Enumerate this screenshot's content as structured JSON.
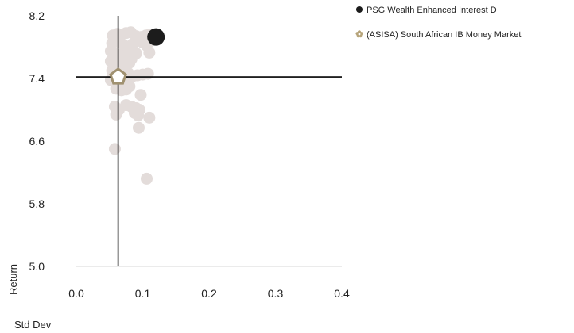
{
  "chart_data": {
    "type": "scatter",
    "xlabel": "Std Dev",
    "ylabel": "Return",
    "xlim": [
      0,
      0.4
    ],
    "ylim": [
      5.0,
      8.2
    ],
    "xticks": [
      "0.0",
      "0.1",
      "0.2",
      "0.3",
      "0.4"
    ],
    "yticks": [
      "5.0",
      "5.8",
      "6.6",
      "7.4",
      "8.2"
    ],
    "grid": false,
    "legend_position": "top-right",
    "reference_lines": {
      "x": 0.063,
      "y": 7.42
    },
    "series": [
      {
        "name": "PSG Wealth Enhanced Interest D",
        "marker": "circle",
        "color": "#1c1c1c",
        "points": [
          {
            "x": 0.12,
            "y": 7.93
          }
        ]
      },
      {
        "name": "(ASISA) South African IB Money Market",
        "marker": "pentagon",
        "color": "#a09170",
        "points": [
          {
            "x": 0.063,
            "y": 7.42
          }
        ]
      },
      {
        "name": "",
        "marker": "circle",
        "color": "#e3dcda",
        "points": [
          {
            "x": 0.055,
            "y": 7.95
          },
          {
            "x": 0.062,
            "y": 7.97
          },
          {
            "x": 0.068,
            "y": 7.96
          },
          {
            "x": 0.075,
            "y": 7.98
          },
          {
            "x": 0.082,
            "y": 7.99
          },
          {
            "x": 0.09,
            "y": 7.94
          },
          {
            "x": 0.098,
            "y": 7.93
          },
          {
            "x": 0.105,
            "y": 7.95
          },
          {
            "x": 0.11,
            "y": 7.96
          },
          {
            "x": 0.054,
            "y": 7.85
          },
          {
            "x": 0.06,
            "y": 7.88
          },
          {
            "x": 0.066,
            "y": 7.86
          },
          {
            "x": 0.072,
            "y": 7.82
          },
          {
            "x": 0.078,
            "y": 7.8
          },
          {
            "x": 0.085,
            "y": 7.84
          },
          {
            "x": 0.1,
            "y": 7.86
          },
          {
            "x": 0.106,
            "y": 7.82
          },
          {
            "x": 0.11,
            "y": 7.73
          },
          {
            "x": 0.052,
            "y": 7.75
          },
          {
            "x": 0.058,
            "y": 7.72
          },
          {
            "x": 0.064,
            "y": 7.7
          },
          {
            "x": 0.07,
            "y": 7.68
          },
          {
            "x": 0.077,
            "y": 7.7
          },
          {
            "x": 0.083,
            "y": 7.65
          },
          {
            "x": 0.09,
            "y": 7.72
          },
          {
            "x": 0.052,
            "y": 7.62
          },
          {
            "x": 0.058,
            "y": 7.6
          },
          {
            "x": 0.066,
            "y": 7.58
          },
          {
            "x": 0.073,
            "y": 7.55
          },
          {
            "x": 0.08,
            "y": 7.6
          },
          {
            "x": 0.054,
            "y": 7.5
          },
          {
            "x": 0.06,
            "y": 7.48
          },
          {
            "x": 0.07,
            "y": 7.45
          },
          {
            "x": 0.078,
            "y": 7.47
          },
          {
            "x": 0.085,
            "y": 7.43
          },
          {
            "x": 0.092,
            "y": 7.44
          },
          {
            "x": 0.1,
            "y": 7.45
          },
          {
            "x": 0.108,
            "y": 7.46
          },
          {
            "x": 0.052,
            "y": 7.38
          },
          {
            "x": 0.058,
            "y": 7.36
          },
          {
            "x": 0.064,
            "y": 7.34
          },
          {
            "x": 0.072,
            "y": 7.33
          },
          {
            "x": 0.08,
            "y": 7.3
          },
          {
            "x": 0.06,
            "y": 7.27
          },
          {
            "x": 0.068,
            "y": 7.25
          },
          {
            "x": 0.075,
            "y": 7.26
          },
          {
            "x": 0.097,
            "y": 7.19
          },
          {
            "x": 0.075,
            "y": 7.06
          },
          {
            "x": 0.083,
            "y": 7.04
          },
          {
            "x": 0.09,
            "y": 7.02
          },
          {
            "x": 0.095,
            "y": 7.0
          },
          {
            "x": 0.058,
            "y": 7.04
          },
          {
            "x": 0.064,
            "y": 7.0
          },
          {
            "x": 0.06,
            "y": 6.94
          },
          {
            "x": 0.088,
            "y": 6.96
          },
          {
            "x": 0.093,
            "y": 6.93
          },
          {
            "x": 0.11,
            "y": 6.9
          },
          {
            "x": 0.094,
            "y": 6.77
          },
          {
            "x": 0.058,
            "y": 6.5
          },
          {
            "x": 0.106,
            "y": 6.12
          }
        ]
      }
    ],
    "legend": [
      {
        "label": "PSG Wealth Enhanced Interest D",
        "marker": "circle",
        "color": "#1c1c1c"
      },
      {
        "label": "(ASISA) South African IB Money Market",
        "marker": "flower",
        "color": "#b6a47a"
      }
    ]
  }
}
